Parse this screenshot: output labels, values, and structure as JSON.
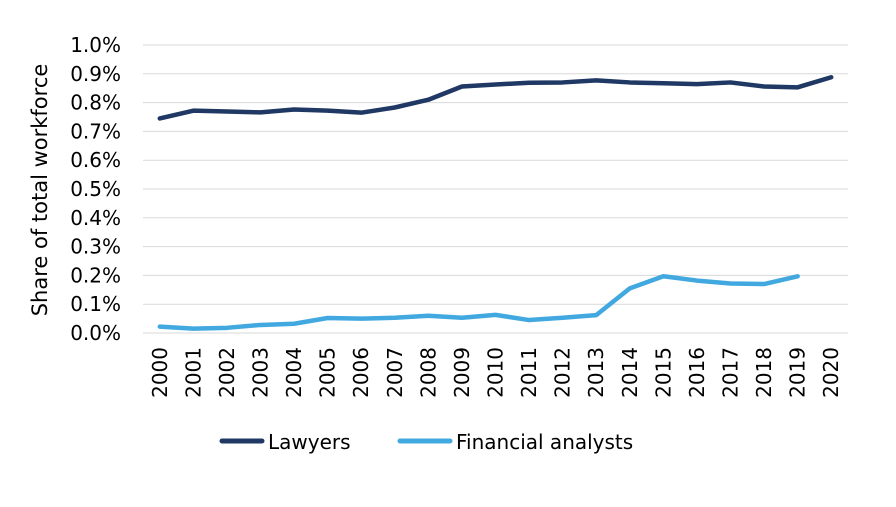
{
  "chart_data": {
    "type": "line",
    "title": "",
    "xlabel": "",
    "ylabel": "Share of total workforce",
    "x": [
      "2000",
      "2001",
      "2002",
      "2003",
      "2004",
      "2005",
      "2006",
      "2007",
      "2008",
      "2009",
      "2010",
      "2011",
      "2012",
      "2013",
      "2014",
      "2015",
      "2016",
      "2017",
      "2018",
      "2019",
      "2020"
    ],
    "y_ticks": [
      "0.0%",
      "0.1%",
      "0.2%",
      "0.3%",
      "0.4%",
      "0.5%",
      "0.6%",
      "0.7%",
      "0.8%",
      "0.9%",
      "1.0%"
    ],
    "ylim": [
      0,
      1.0
    ],
    "grid": true,
    "legend_position": "bottom",
    "series": [
      {
        "name": "Lawyers",
        "color": "#1f3864",
        "values": [
          0.745,
          0.772,
          0.769,
          0.766,
          0.776,
          0.772,
          0.765,
          0.783,
          0.81,
          0.856,
          0.863,
          0.869,
          0.87,
          0.877,
          0.87,
          0.867,
          0.864,
          0.87,
          0.856,
          0.853,
          0.888
        ]
      },
      {
        "name": "Financial analysts",
        "color": "#41a8e0",
        "values": [
          0.022,
          0.015,
          0.018,
          0.028,
          0.032,
          0.052,
          0.05,
          0.053,
          0.06,
          0.053,
          0.063,
          0.045,
          0.053,
          0.062,
          0.155,
          0.197,
          0.182,
          0.172,
          0.17,
          0.197,
          null
        ]
      }
    ]
  }
}
